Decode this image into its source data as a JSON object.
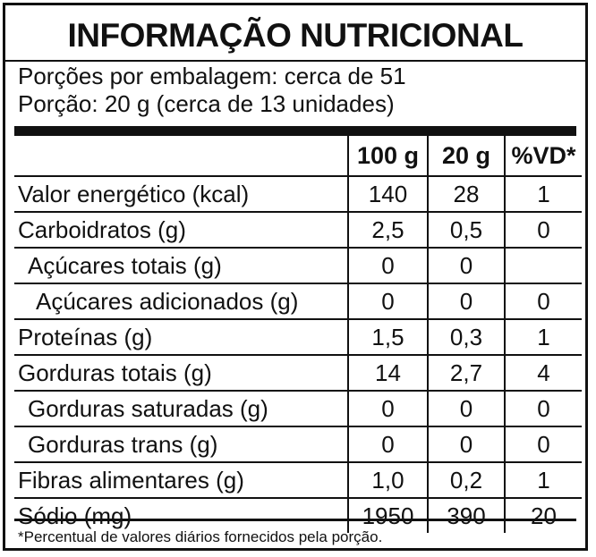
{
  "title": "INFORMAÇÃO NUTRICIONAL",
  "servings": {
    "per_package": "Porções por embalagem: cerca de 51",
    "portion": "Porção: 20 g (cerca de 13 unidades)"
  },
  "columns": [
    "100 g",
    "20 g",
    "%VD*"
  ],
  "rows": [
    {
      "name": "Valor energético (kcal)",
      "indent": 0,
      "per100": "140",
      "per20": "28",
      "vd": "1"
    },
    {
      "name": "Carboidratos (g)",
      "indent": 0,
      "per100": "2,5",
      "per20": "0,5",
      "vd": "0"
    },
    {
      "name": "Açúcares totais (g)",
      "indent": 1,
      "per100": "0",
      "per20": "0",
      "vd": ""
    },
    {
      "name": "Açúcares adicionados (g)",
      "indent": 2,
      "per100": "0",
      "per20": "0",
      "vd": "0"
    },
    {
      "name": "Proteínas (g)",
      "indent": 0,
      "per100": "1,5",
      "per20": "0,3",
      "vd": "1"
    },
    {
      "name": "Gorduras totais (g)",
      "indent": 0,
      "per100": "14",
      "per20": "2,7",
      "vd": "4"
    },
    {
      "name": "Gorduras saturadas (g)",
      "indent": 1,
      "per100": "0",
      "per20": "0",
      "vd": "0"
    },
    {
      "name": "Gorduras trans (g)",
      "indent": 1,
      "per100": "0",
      "per20": "0",
      "vd": "0"
    },
    {
      "name": "Fibras alimentares (g)",
      "indent": 0,
      "per100": "1,0",
      "per20": "0,2",
      "vd": "1"
    },
    {
      "name": "Sódio (mg)",
      "indent": 0,
      "per100": "1950",
      "per20": "390",
      "vd": "20"
    }
  ],
  "footnote": "*Percentual de valores diários fornecidos pela porção."
}
